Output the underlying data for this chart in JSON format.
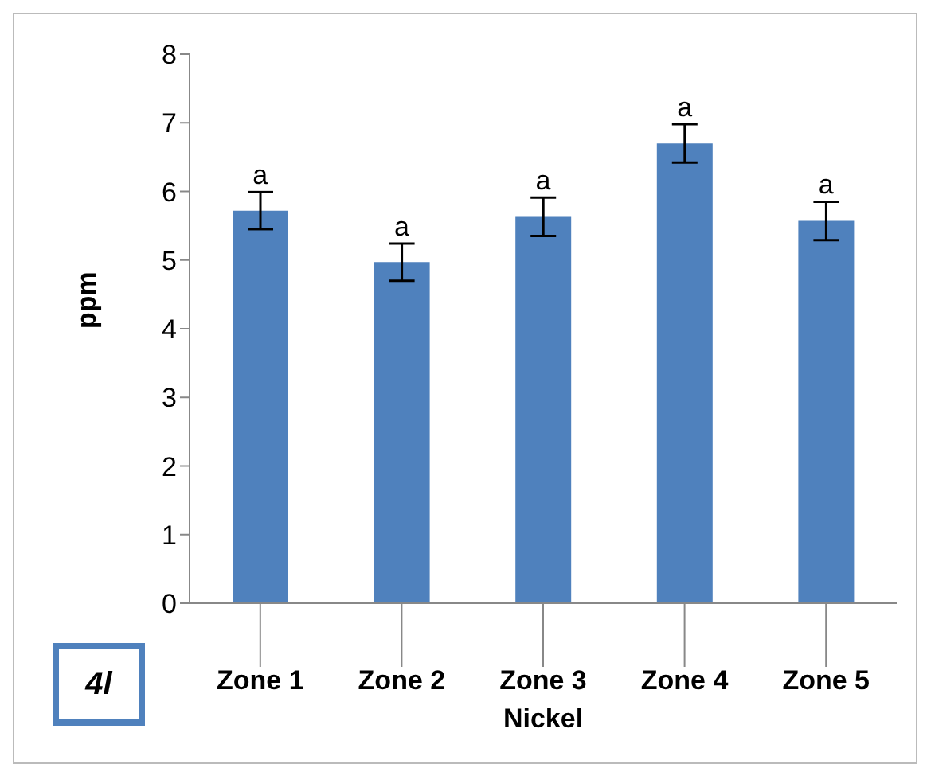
{
  "chart_data": {
    "type": "bar",
    "categories": [
      "Zone 1",
      "Zone 2",
      "Zone 3",
      "Zone 4",
      "Zone 5"
    ],
    "values": [
      5.72,
      4.97,
      5.63,
      6.7,
      5.57
    ],
    "color": "#4f81bd",
    "errors": [
      0.27,
      0.27,
      0.28,
      0.28,
      0.28
    ],
    "ylim": [
      0,
      8
    ],
    "yticks": [
      0,
      1,
      2,
      3,
      4,
      5,
      6,
      7,
      8
    ],
    "xlabel": "Nickel",
    "ylabel": "ppm",
    "grid": false,
    "legend": false,
    "annotations": [
      {
        "text": "a",
        "x": "Zone 1",
        "y": 5.99
      },
      {
        "text": "a",
        "x": "Zone 2",
        "y": 5.24
      },
      {
        "text": "a",
        "x": "Zone 3",
        "y": 5.91
      },
      {
        "text": "a",
        "x": "Zone 4",
        "y": 6.98
      },
      {
        "text": "a",
        "x": "Zone 5",
        "y": 5.85
      },
      "4l"
    ]
  }
}
